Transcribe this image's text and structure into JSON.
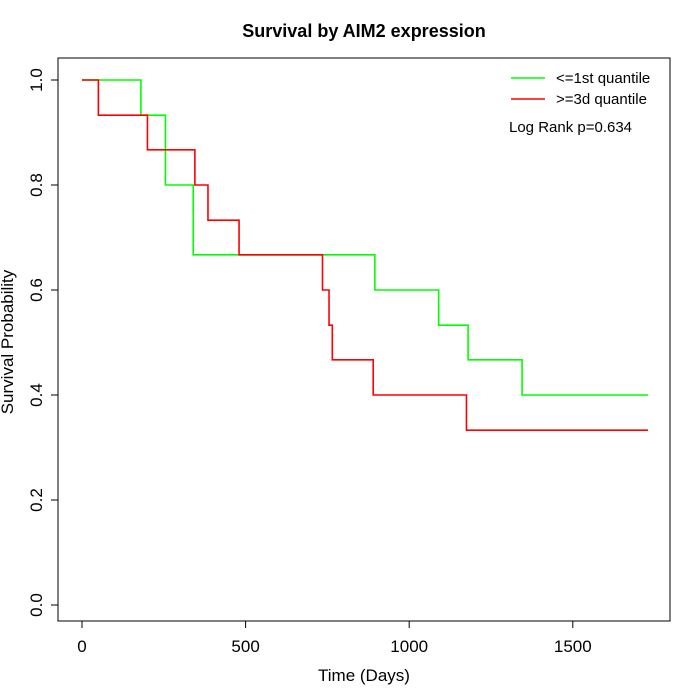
{
  "chart_data": {
    "type": "line",
    "title": "Survival by AIM2 expression",
    "xlabel": "Time (Days)",
    "ylabel": "Survival Probability",
    "xlim": [
      0,
      1800
    ],
    "ylim": [
      0,
      1.0
    ],
    "x_ticks": [
      0,
      500,
      1000,
      1500
    ],
    "y_ticks": [
      0.0,
      0.2,
      0.4,
      0.6,
      0.8,
      1.0
    ],
    "x_tick_labels": [
      "0",
      "500",
      "1000",
      "1500"
    ],
    "y_tick_labels": [
      "0.0",
      "0.2",
      "0.4",
      "0.6",
      "0.8",
      "1.0"
    ],
    "grid": false,
    "legend_position": "top-right",
    "annotation": "Log Rank p=0.634",
    "series": [
      {
        "name": "<=1st quantile",
        "color": "#00ff00",
        "step": true,
        "x": [
          0,
          180,
          255,
          340,
          895,
          1090,
          1180,
          1345,
          1730
        ],
        "y": [
          1.0,
          0.933,
          0.8,
          0.667,
          0.6,
          0.533,
          0.467,
          0.4,
          0.4
        ]
      },
      {
        "name": ">=3d quantile",
        "color": "#ff0000",
        "step": true,
        "x": [
          0,
          50,
          200,
          345,
          385,
          480,
          735,
          755,
          765,
          890,
          1175,
          1730
        ],
        "y": [
          1.0,
          0.933,
          0.867,
          0.8,
          0.733,
          0.667,
          0.6,
          0.533,
          0.467,
          0.4,
          0.333,
          0.333
        ]
      }
    ]
  }
}
